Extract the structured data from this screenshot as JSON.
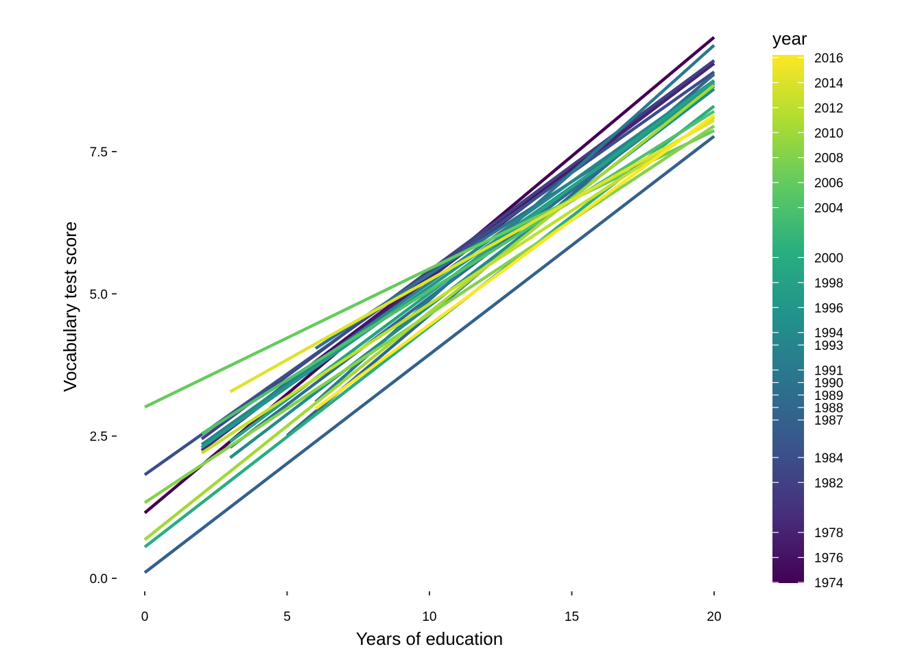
{
  "chart_data": {
    "type": "line",
    "title": "",
    "xlabel": "Years of education",
    "ylabel": "Vocabulary test score",
    "xlim": [
      0,
      20
    ],
    "ylim": [
      0,
      9.5
    ],
    "x_ticks": [
      0,
      5,
      10,
      15,
      20
    ],
    "x_tick_labels": [
      "0",
      "5",
      "10",
      "15",
      "20"
    ],
    "y_ticks": [
      0,
      2.5,
      5,
      7.5
    ],
    "y_tick_labels": [
      "0.0",
      "2.5",
      "5.0",
      "7.5"
    ],
    "grid": false,
    "legend": {
      "title": "year",
      "placement": "right",
      "range": [
        1974,
        2016
      ],
      "colormap": "viridis",
      "tick_labels": [
        "1974",
        "1976",
        "1978",
        "1982",
        "1984",
        "1987",
        "1988",
        "1989",
        "1990",
        "1991",
        "1993",
        "1994",
        "1996",
        "1998",
        "2000",
        "2004",
        "2006",
        "2008",
        "2010",
        "2012",
        "2014",
        "2016"
      ]
    },
    "series": [
      {
        "year": 1974,
        "x": [
          0,
          20
        ],
        "y": [
          1.15,
          9.51
        ]
      },
      {
        "year": 1976,
        "x": [
          2,
          20
        ],
        "y": [
          2.3,
          9.1
        ]
      },
      {
        "year": 1978,
        "x": [
          2,
          20
        ],
        "y": [
          2.25,
          9.05
        ]
      },
      {
        "year": 1982,
        "x": [
          2,
          20
        ],
        "y": [
          2.45,
          9.1
        ]
      },
      {
        "year": 1984,
        "x": [
          0,
          20
        ],
        "y": [
          1.82,
          8.9
        ]
      },
      {
        "year": 1987,
        "x": [
          0,
          20
        ],
        "y": [
          0.1,
          7.77
        ]
      },
      {
        "year": 1988,
        "x": [
          5,
          20
        ],
        "y": [
          2.51,
          8.86
        ]
      },
      {
        "year": 1989,
        "x": [
          3,
          20
        ],
        "y": [
          2.3,
          8.7
        ]
      },
      {
        "year": 1990,
        "x": [
          6,
          20
        ],
        "y": [
          4.04,
          8.6
        ]
      },
      {
        "year": 1991,
        "x": [
          6,
          20
        ],
        "y": [
          3.1,
          9.37
        ]
      },
      {
        "year": 1993,
        "x": [
          2,
          20
        ],
        "y": [
          2.35,
          8.75
        ]
      },
      {
        "year": 1994,
        "x": [
          3,
          20
        ],
        "y": [
          2.12,
          8.6
        ]
      },
      {
        "year": 1996,
        "x": [
          2,
          20
        ],
        "y": [
          2.3,
          8.65
        ]
      },
      {
        "year": 1998,
        "x": [
          3,
          20
        ],
        "y": [
          2.4,
          8.74
        ]
      },
      {
        "year": 2000,
        "x": [
          0,
          20
        ],
        "y": [
          0.55,
          8.3
        ]
      },
      {
        "year": 2004,
        "x": [
          2,
          20
        ],
        "y": [
          2.54,
          8.21
        ]
      },
      {
        "year": 2006,
        "x": [
          0,
          20
        ],
        "y": [
          3.01,
          7.87
        ]
      },
      {
        "year": 2008,
        "x": [
          0,
          20
        ],
        "y": [
          1.33,
          7.95
        ]
      },
      {
        "year": 2010,
        "x": [
          0,
          20
        ],
        "y": [
          0.68,
          8.67
        ]
      },
      {
        "year": 2012,
        "x": [
          2,
          20
        ],
        "y": [
          2.2,
          8.1
        ]
      },
      {
        "year": 2014,
        "x": [
          3,
          20
        ],
        "y": [
          3.28,
          8.05
        ]
      },
      {
        "year": 2016,
        "x": [
          6,
          20
        ],
        "y": [
          2.98,
          8.14
        ]
      }
    ]
  }
}
